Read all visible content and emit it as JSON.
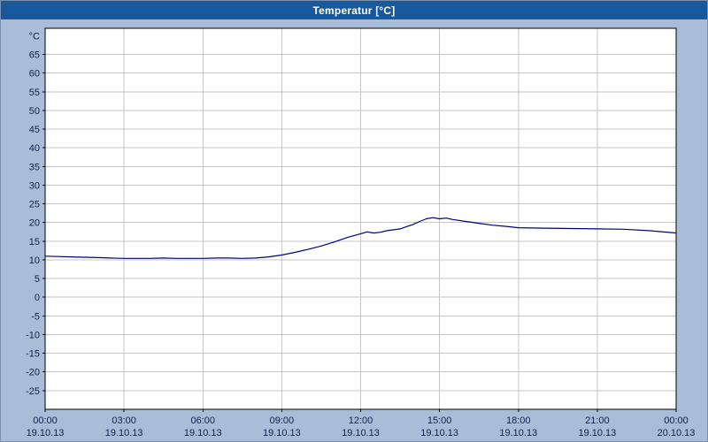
{
  "window": {
    "title": "Temperatur [°C]"
  },
  "colors": {
    "titlebar_bg": "#17599c",
    "titlebar_text": "#ffffff",
    "page_bg": "#a9bdd9",
    "plot_bg": "#ffffff",
    "grid": "#c6c6c6",
    "axis_border": "#000000",
    "tick_label": "#10204a",
    "line": "#000080"
  },
  "chart_data": {
    "type": "line",
    "title": "Temperatur [°C]",
    "ylabel": "°C",
    "grid": true,
    "legend": "none",
    "ylim": [
      -30,
      72
    ],
    "xlim_hours": [
      0,
      24
    ],
    "y_ticks": [
      65,
      60,
      55,
      50,
      45,
      40,
      35,
      30,
      25,
      20,
      15,
      10,
      5,
      0,
      -5,
      -10,
      -15,
      -20,
      -25
    ],
    "x_ticks": [
      {
        "hour": 0,
        "time": "00:00",
        "date": "19.10.13"
      },
      {
        "hour": 3,
        "time": "03:00",
        "date": "19.10.13"
      },
      {
        "hour": 6,
        "time": "06:00",
        "date": "19.10.13"
      },
      {
        "hour": 9,
        "time": "09:00",
        "date": "19.10.13"
      },
      {
        "hour": 12,
        "time": "12:00",
        "date": "19.10.13"
      },
      {
        "hour": 15,
        "time": "15:00",
        "date": "19.10.13"
      },
      {
        "hour": 18,
        "time": "18:00",
        "date": "19.10.13"
      },
      {
        "hour": 21,
        "time": "21:00",
        "date": "19.10.13"
      },
      {
        "hour": 24,
        "time": "00:00",
        "date": "20.10.13"
      }
    ],
    "series": [
      {
        "name": "Temperatur",
        "color": "#000080",
        "x_hours": [
          0,
          0.5,
          1,
          1.5,
          2,
          2.5,
          3,
          3.5,
          4,
          4.5,
          5,
          5.5,
          6,
          6.5,
          7,
          7.5,
          8,
          8.5,
          9,
          9.5,
          10,
          10.5,
          11,
          11.5,
          12,
          12.25,
          12.5,
          12.75,
          13,
          13.5,
          14,
          14.25,
          14.5,
          14.75,
          15,
          15.25,
          15.5,
          16,
          16.5,
          17,
          17.5,
          18,
          19,
          20,
          21,
          22,
          23,
          24
        ],
        "values": [
          11,
          10.9,
          10.8,
          10.7,
          10.6,
          10.5,
          10.4,
          10.4,
          10.4,
          10.5,
          10.4,
          10.4,
          10.4,
          10.5,
          10.5,
          10.4,
          10.5,
          10.8,
          11.3,
          12,
          12.8,
          13.7,
          14.8,
          16,
          17,
          17.5,
          17.2,
          17.4,
          17.8,
          18.3,
          19.5,
          20.3,
          21,
          21.3,
          21,
          21.2,
          20.8,
          20.3,
          19.8,
          19.3,
          19,
          18.6,
          18.5,
          18.4,
          18.3,
          18.2,
          17.8,
          17.2
        ]
      }
    ]
  }
}
